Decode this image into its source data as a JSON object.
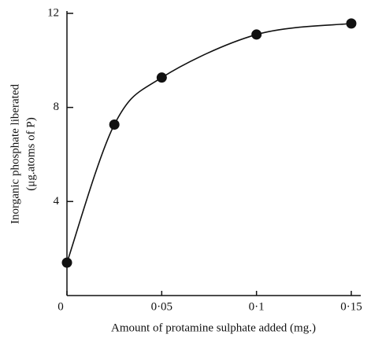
{
  "chart_data": {
    "type": "line",
    "x_label": "Amount of protamine sulphate added (mg.)",
    "y_label": [
      "Inorganic phosphate liberated",
      "(μg.atoms of P)"
    ],
    "x": [
      0,
      0.025,
      0.05,
      0.1,
      0.15
    ],
    "values": [
      1.4,
      7.27,
      9.27,
      11.1,
      11.57
    ],
    "color": "#111111",
    "xlim": [
      0,
      0.155
    ],
    "ylim": [
      0,
      12
    ],
    "xticks": [
      0,
      {
        "value": 0.05,
        "label": "0·05"
      },
      {
        "value": 0.1,
        "label": "0·1"
      },
      {
        "value": 0.15,
        "label": "0·15"
      }
    ],
    "yticks": [
      4,
      8,
      12
    ],
    "grid": false
  }
}
